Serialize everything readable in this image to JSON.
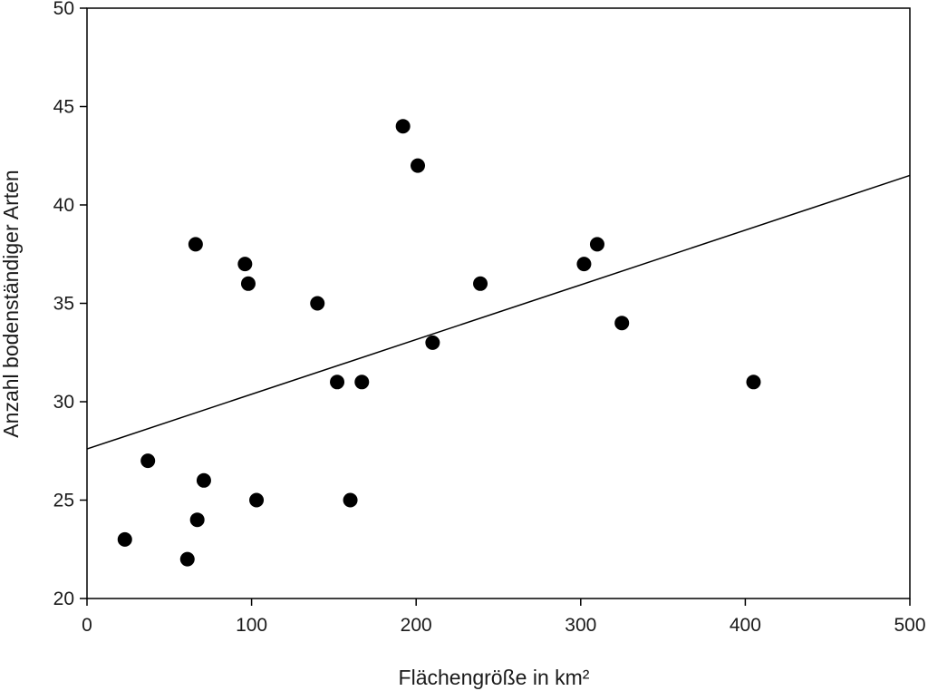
{
  "chart_data": {
    "type": "scatter",
    "title": "",
    "xlabel": "Flächengröße in km²",
    "ylabel": "Anzahl bodenständiger Arten",
    "xlim": [
      0,
      500
    ],
    "ylim": [
      20,
      50
    ],
    "xticks": [
      0,
      100,
      200,
      300,
      400,
      500
    ],
    "yticks": [
      20,
      25,
      30,
      35,
      40,
      45,
      50
    ],
    "grid": false,
    "series": [
      {
        "points": [
          {
            "x": 23,
            "y": 23
          },
          {
            "x": 37,
            "y": 27
          },
          {
            "x": 61,
            "y": 22
          },
          {
            "x": 66,
            "y": 38
          },
          {
            "x": 67,
            "y": 24
          },
          {
            "x": 71,
            "y": 26
          },
          {
            "x": 96,
            "y": 37
          },
          {
            "x": 98,
            "y": 36
          },
          {
            "x": 103,
            "y": 25
          },
          {
            "x": 140,
            "y": 35
          },
          {
            "x": 152,
            "y": 31
          },
          {
            "x": 160,
            "y": 25
          },
          {
            "x": 167,
            "y": 31
          },
          {
            "x": 192,
            "y": 44
          },
          {
            "x": 201,
            "y": 42
          },
          {
            "x": 210,
            "y": 33
          },
          {
            "x": 239,
            "y": 36
          },
          {
            "x": 302,
            "y": 37
          },
          {
            "x": 310,
            "y": 38
          },
          {
            "x": 325,
            "y": 34
          },
          {
            "x": 405,
            "y": 31
          }
        ],
        "color": "#000000"
      }
    ],
    "trendline": {
      "type": "linear",
      "x": [
        0,
        500
      ],
      "y": [
        27.6,
        41.5
      ],
      "color": "#000000"
    }
  }
}
